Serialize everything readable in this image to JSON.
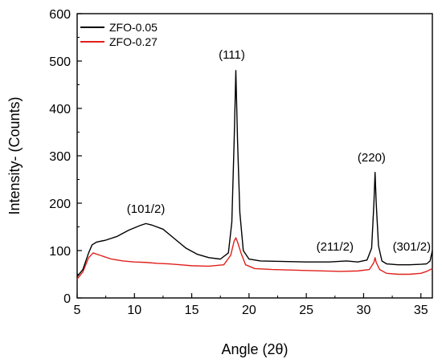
{
  "chart_data": {
    "type": "line",
    "xlabel": "Angle (2θ)",
    "ylabel": "Intensity- (Counts)",
    "xlim": [
      5,
      36
    ],
    "ylim": [
      0,
      600
    ],
    "x_ticks": [
      5,
      10,
      15,
      20,
      25,
      30,
      35
    ],
    "y_ticks": [
      0,
      100,
      200,
      300,
      400,
      500,
      600
    ],
    "legend_position": "top-left",
    "grid": false,
    "series": [
      {
        "name": "ZFO-0.05",
        "color": "#000000",
        "x": [
          5.0,
          5.5,
          6.0,
          6.3,
          6.7,
          7.5,
          8.5,
          9.5,
          10.5,
          11.0,
          11.5,
          12.5,
          13.5,
          14.5,
          15.5,
          16.5,
          17.5,
          18.2,
          18.5,
          18.7,
          18.85,
          19.0,
          19.2,
          19.5,
          20.0,
          21.0,
          23.0,
          25.0,
          27.0,
          28.5,
          29.5,
          30.3,
          30.7,
          30.9,
          31.0,
          31.1,
          31.3,
          31.6,
          32.0,
          33.0,
          34.0,
          35.0,
          35.5,
          35.8,
          36.0
        ],
        "y": [
          45,
          60,
          95,
          112,
          118,
          122,
          130,
          143,
          153,
          157,
          154,
          145,
          125,
          105,
          92,
          85,
          82,
          95,
          160,
          330,
          480,
          330,
          180,
          100,
          82,
          78,
          77,
          76,
          76,
          78,
          76,
          80,
          105,
          200,
          265,
          200,
          110,
          78,
          72,
          70,
          70,
          71,
          72,
          78,
          100
        ]
      },
      {
        "name": "ZFO-0.27",
        "color": "#e0201b",
        "x": [
          5.0,
          5.5,
          6.0,
          6.4,
          7.0,
          8.0,
          9.0,
          10.0,
          11.0,
          12.0,
          13.0,
          14.0,
          15.0,
          16.5,
          17.8,
          18.4,
          18.7,
          18.85,
          19.0,
          19.3,
          19.7,
          20.5,
          22.0,
          25.0,
          28.0,
          29.5,
          30.5,
          30.9,
          31.0,
          31.1,
          31.4,
          32.0,
          33.0,
          34.0,
          35.0,
          35.5,
          36.0
        ],
        "y": [
          40,
          55,
          85,
          95,
          90,
          82,
          78,
          76,
          75,
          73,
          72,
          70,
          68,
          67,
          70,
          90,
          120,
          127,
          118,
          95,
          70,
          62,
          60,
          58,
          56,
          57,
          60,
          75,
          85,
          75,
          60,
          52,
          50,
          50,
          52,
          56,
          62
        ]
      }
    ],
    "annotations": [
      {
        "text": "(101/2)",
        "x": 11.0,
        "y": 180
      },
      {
        "text": "(111)",
        "x": 18.5,
        "y": 505
      },
      {
        "text": "(211/2)",
        "x": 27.5,
        "y": 100
      },
      {
        "text": "(220)",
        "x": 30.7,
        "y": 288
      },
      {
        "text": "(301/2)",
        "x": 34.2,
        "y": 100
      }
    ]
  }
}
